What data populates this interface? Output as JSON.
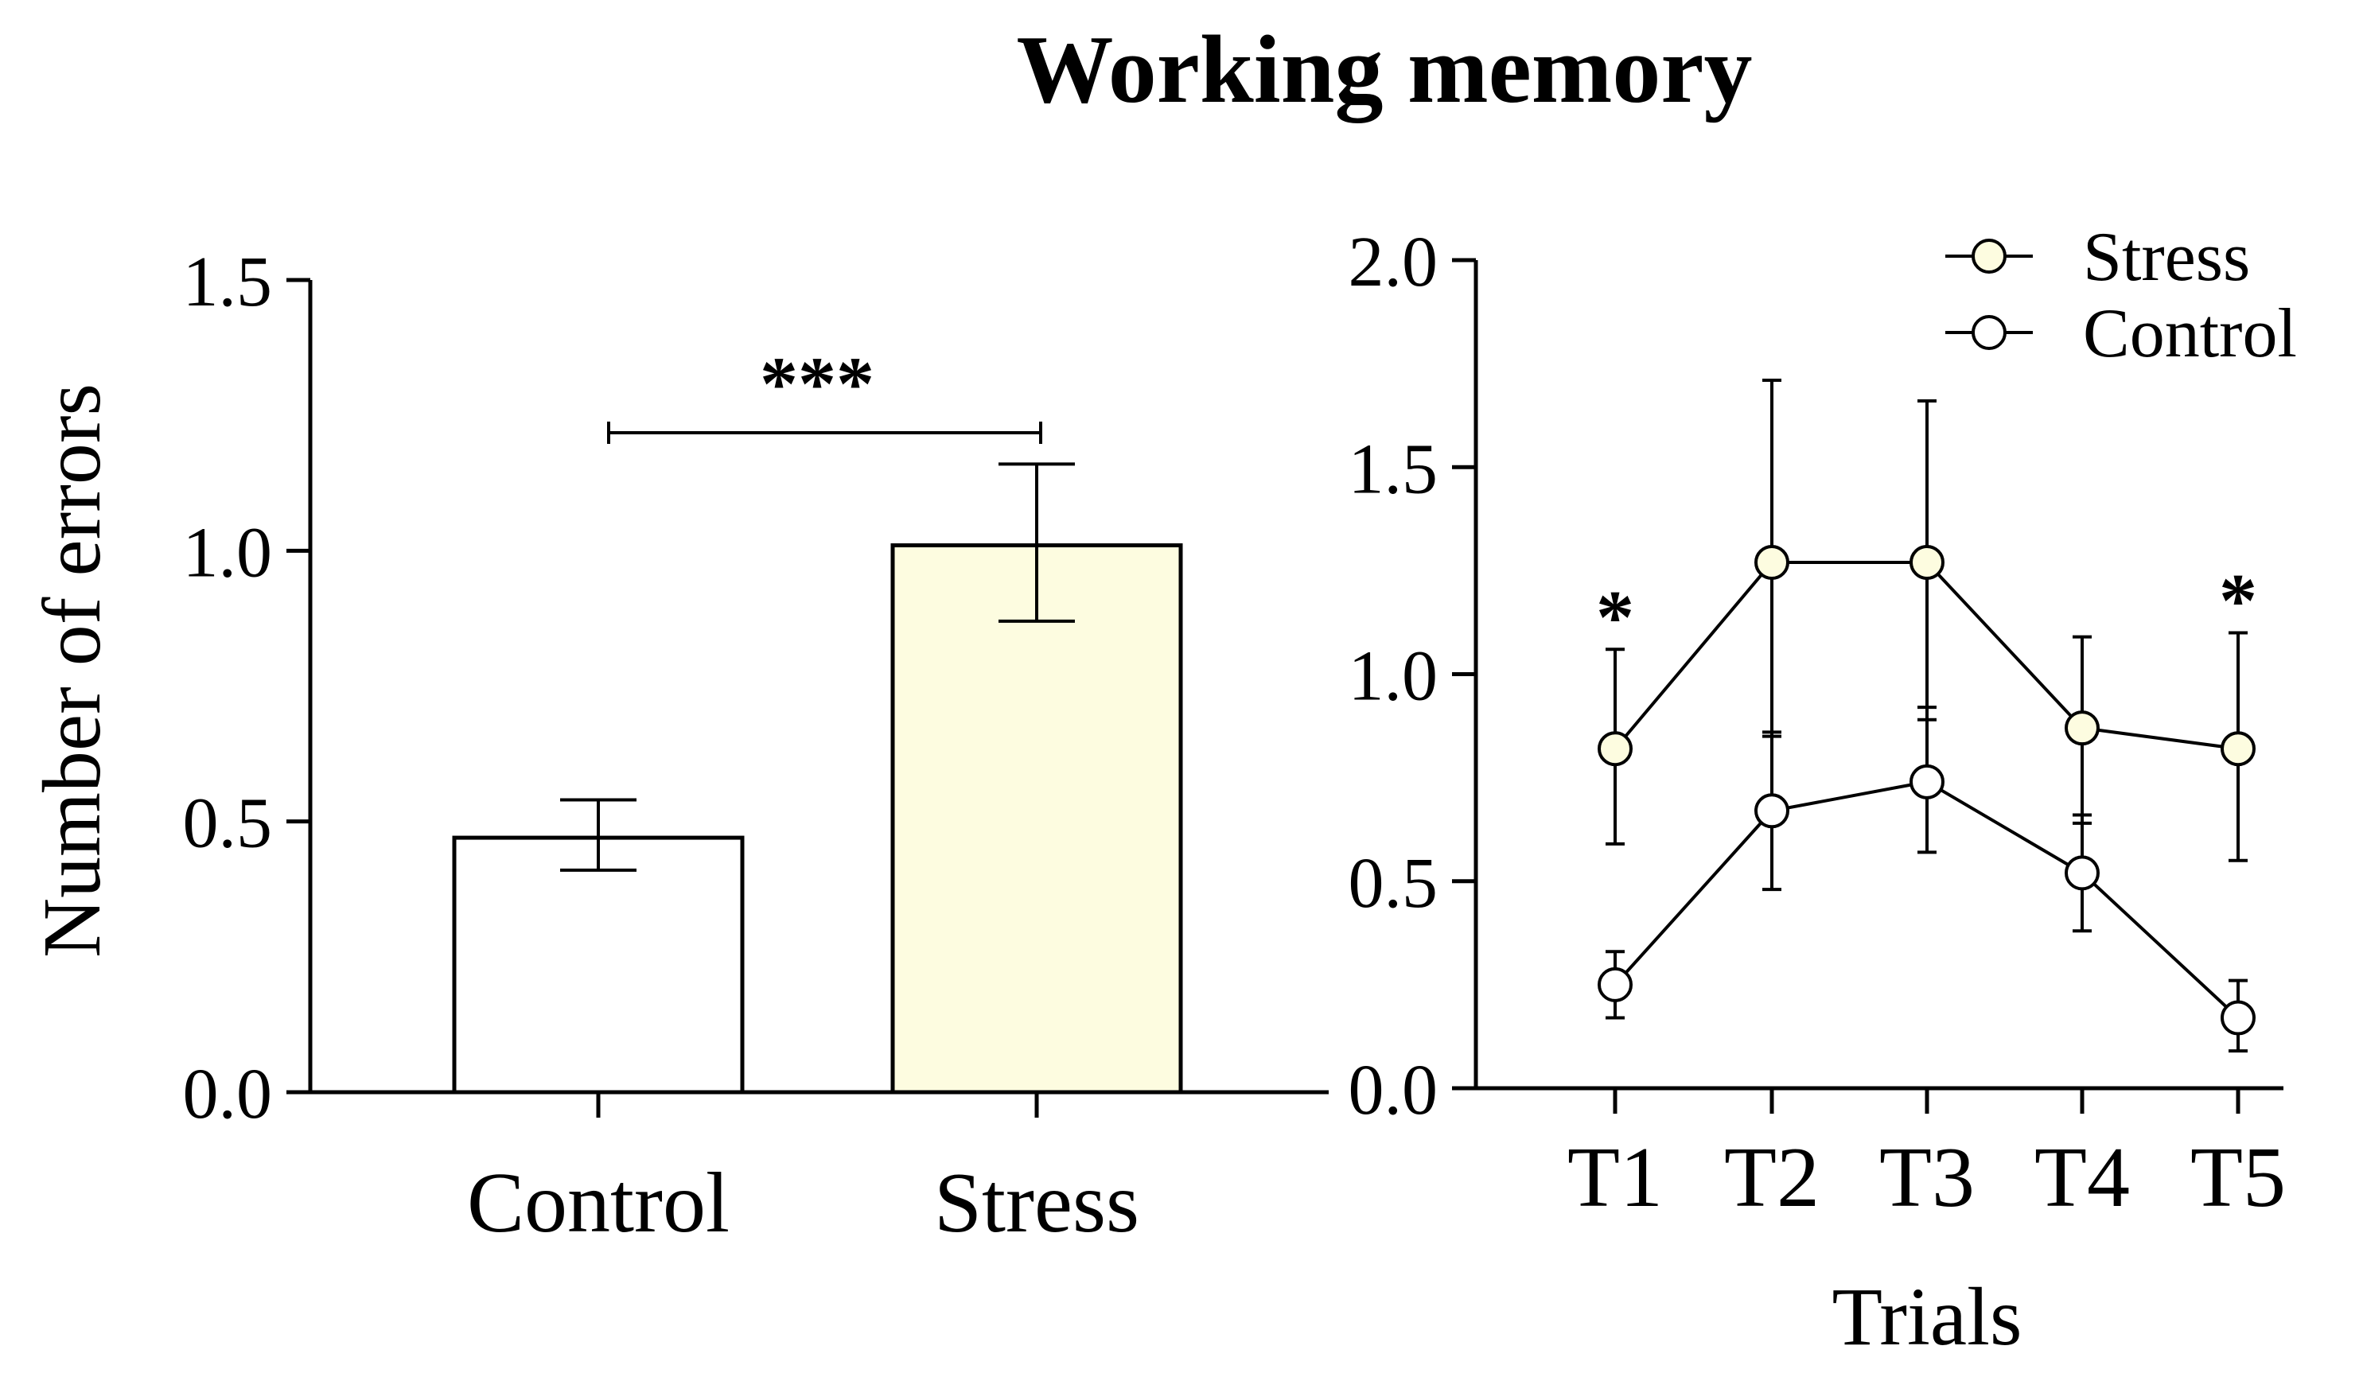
{
  "figure": {
    "title": "Working memory"
  },
  "colors": {
    "stress_fill": "#fdfce0",
    "control_fill": "#ffffff",
    "stroke": "#000000"
  },
  "chart_data": [
    {
      "type": "bar",
      "title": "",
      "xlabel": "",
      "ylabel": "Number of errors",
      "ylim": [
        0,
        1.5
      ],
      "yticks": [
        "0.0",
        "0.5",
        "1.0",
        "1.5"
      ],
      "categories": [
        "Control",
        "Stress"
      ],
      "values": [
        0.47,
        1.01
      ],
      "error_low": [
        0.41,
        0.87
      ],
      "error_high": [
        0.54,
        1.16
      ],
      "significance": {
        "from": "Control",
        "to": "Stress",
        "label": "***"
      },
      "grid": false
    },
    {
      "type": "line",
      "title": "",
      "xlabel": "Trials",
      "ylabel": "",
      "ylim": [
        0,
        2.0
      ],
      "yticks": [
        "0.0",
        "0.5",
        "1.0",
        "1.5",
        "2.0"
      ],
      "categories": [
        "T1",
        "T2",
        "T3",
        "T4",
        "T5"
      ],
      "legend_position": "top-right",
      "grid": false,
      "series": [
        {
          "name": "Stress",
          "values": [
            0.82,
            1.27,
            1.27,
            0.87,
            0.82
          ],
          "error_low": [
            0.59,
            0.85,
            0.89,
            0.64,
            0.55
          ],
          "error_high": [
            1.06,
            1.71,
            1.66,
            1.09,
            1.1
          ]
        },
        {
          "name": "Control",
          "values": [
            0.25,
            0.67,
            0.74,
            0.52,
            0.17
          ],
          "error_low": [
            0.17,
            0.48,
            0.57,
            0.38,
            0.09
          ],
          "error_high": [
            0.33,
            0.86,
            0.92,
            0.66,
            0.26
          ]
        }
      ],
      "significance_marks": [
        {
          "category": "T1",
          "label": "*"
        },
        {
          "category": "T5",
          "label": "*"
        }
      ]
    }
  ]
}
